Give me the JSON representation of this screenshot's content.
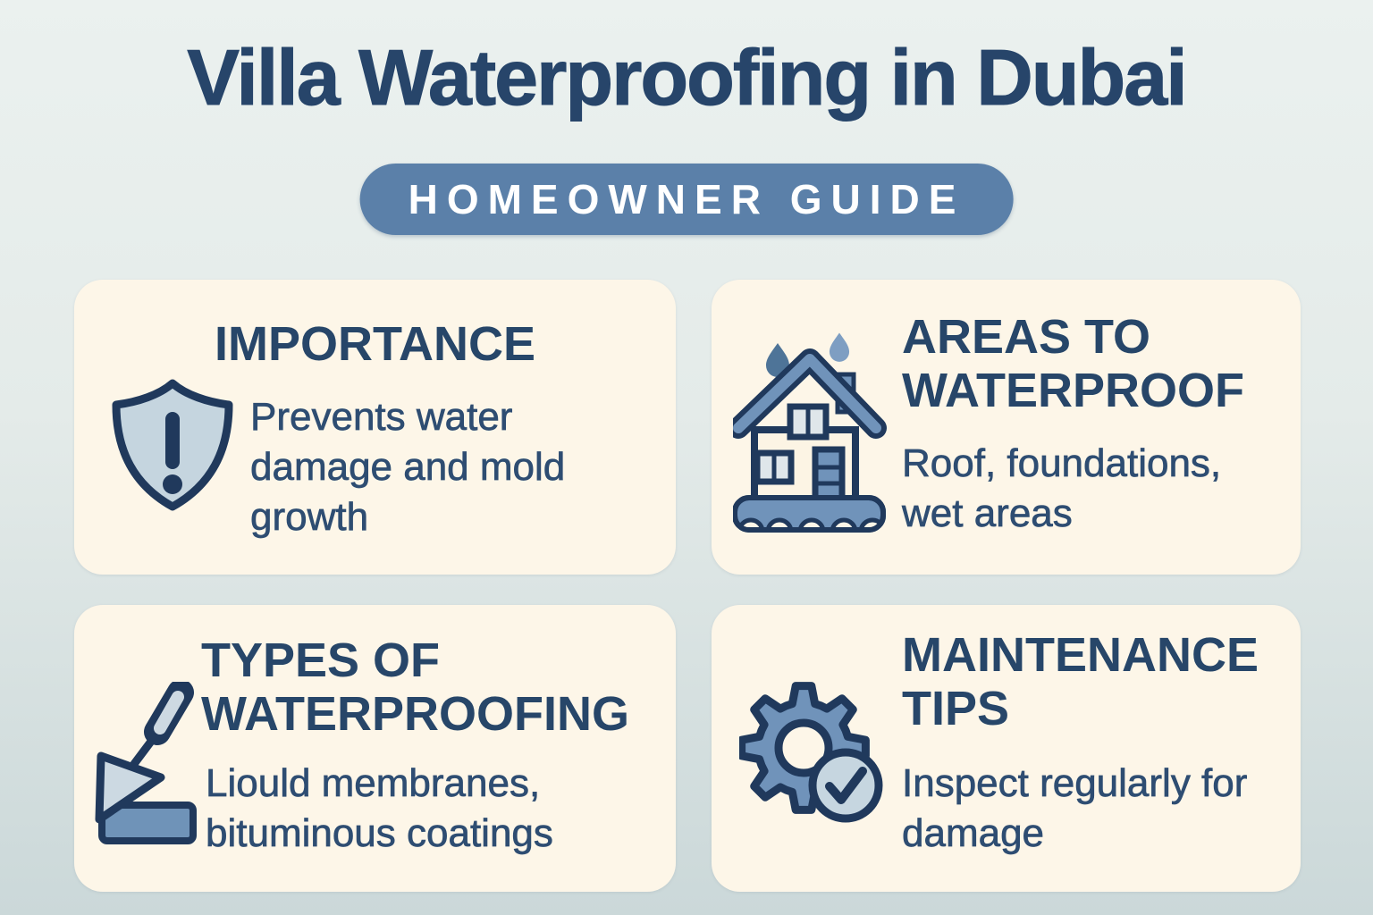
{
  "page": {
    "title": "Villa Waterproofing in Dubai",
    "badge": "HOMEOWNER GUIDE"
  },
  "colors": {
    "background_top": "#ebf1ef",
    "background_bottom": "#cbd8d9",
    "card_background": "#fdf6e8",
    "title_navy": "#27456a",
    "heading_navy": "#274669",
    "body_navy": "#2e4d72",
    "badge_blue": "#5b80a9",
    "badge_text": "#ffffff",
    "icon_outline_navy": "#20395c",
    "icon_steel_blue": "#7093ba",
    "icon_light_blue": "#c5d5df",
    "raindrop_dark": "#4e7498",
    "raindrop_light": "#7e9ec2"
  },
  "cards": [
    {
      "id": "importance",
      "title": "IMPORTANCE",
      "body": "Prevents water damage and mold growth",
      "icon": "shield-alert-icon"
    },
    {
      "id": "areas",
      "title": "AREAS TO WATERPROOF",
      "body": "Roof, foundations, wet areas",
      "icon": "house-raindrops-icon"
    },
    {
      "id": "types",
      "title": "TYPES OF WATERPROOFING",
      "body": "Liould membranes, bituminous coatings",
      "icon": "trowel-icon"
    },
    {
      "id": "maintenance",
      "title": "MAINTENANCE TIPS",
      "body": "Inspect regularly for damage",
      "icon": "gear-check-icon"
    }
  ]
}
